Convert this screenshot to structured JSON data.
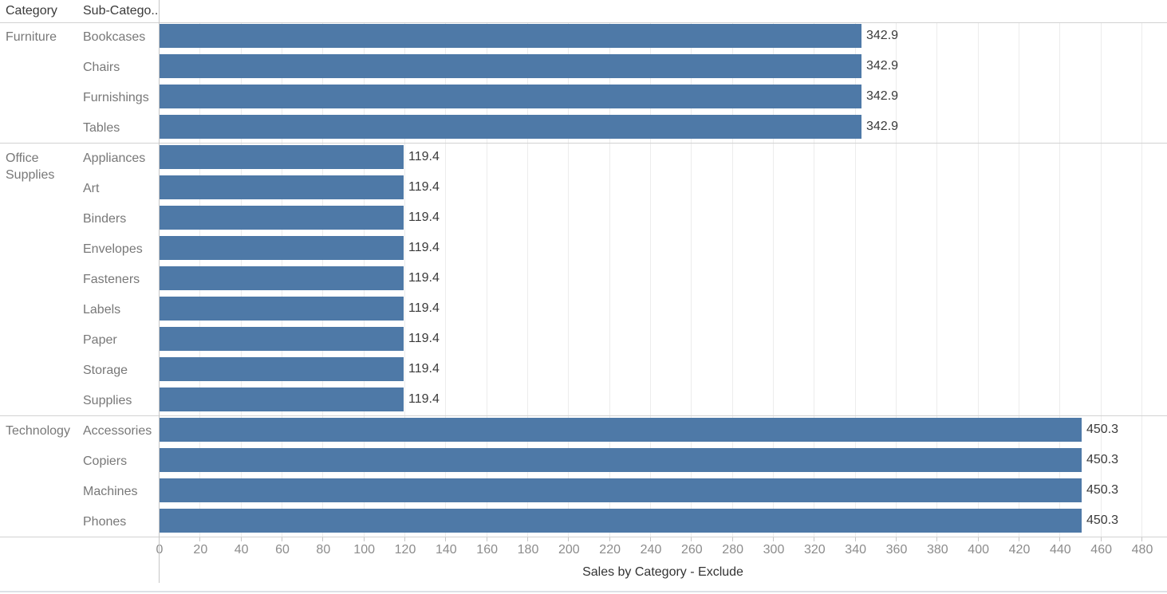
{
  "column_headers": {
    "category": "Category",
    "subcategory": "Sub-Catego.."
  },
  "colors": {
    "bar": "#4e79a7",
    "gridline": "#ececec",
    "divider": "#d2d2d2",
    "axis_line": "#c6c6c6",
    "row_label_text": "#787878",
    "tick_label_text": "#8c8c8c",
    "dark_text": "#3a3a3a",
    "bottom_border": "#dde1e6"
  },
  "chart_data": {
    "type": "bar",
    "orientation": "horizontal",
    "title": "Sales by Category - Exclude",
    "xlabel": "Sales by Category - Exclude",
    "ylabel": "",
    "xlim": [
      0,
      480
    ],
    "tick_interval": 20,
    "grid": true,
    "legend": "none",
    "tick_labels": [
      "0",
      "20",
      "40",
      "60",
      "80",
      "100",
      "120",
      "140",
      "160",
      "180",
      "200",
      "220",
      "240",
      "260",
      "280",
      "300",
      "320",
      "340",
      "360",
      "380",
      "400",
      "420",
      "440",
      "460",
      "480"
    ],
    "groups": [
      {
        "category": "Furniture",
        "rows": [
          {
            "label": "Bookcases",
            "value": 342.9,
            "value_label": "342.9"
          },
          {
            "label": "Chairs",
            "value": 342.9,
            "value_label": "342.9"
          },
          {
            "label": "Furnishings",
            "value": 342.9,
            "value_label": "342.9"
          },
          {
            "label": "Tables",
            "value": 342.9,
            "value_label": "342.9"
          }
        ]
      },
      {
        "category": "Office Supplies",
        "rows": [
          {
            "label": "Appliances",
            "value": 119.4,
            "value_label": "119.4"
          },
          {
            "label": "Art",
            "value": 119.4,
            "value_label": "119.4"
          },
          {
            "label": "Binders",
            "value": 119.4,
            "value_label": "119.4"
          },
          {
            "label": "Envelopes",
            "value": 119.4,
            "value_label": "119.4"
          },
          {
            "label": "Fasteners",
            "value": 119.4,
            "value_label": "119.4"
          },
          {
            "label": "Labels",
            "value": 119.4,
            "value_label": "119.4"
          },
          {
            "label": "Paper",
            "value": 119.4,
            "value_label": "119.4"
          },
          {
            "label": "Storage",
            "value": 119.4,
            "value_label": "119.4"
          },
          {
            "label": "Supplies",
            "value": 119.4,
            "value_label": "119.4"
          }
        ]
      },
      {
        "category": "Technology",
        "rows": [
          {
            "label": "Accessories",
            "value": 450.3,
            "value_label": "450.3"
          },
          {
            "label": "Copiers",
            "value": 450.3,
            "value_label": "450.3"
          },
          {
            "label": "Machines",
            "value": 450.3,
            "value_label": "450.3"
          },
          {
            "label": "Phones",
            "value": 450.3,
            "value_label": "450.3"
          }
        ]
      }
    ]
  }
}
